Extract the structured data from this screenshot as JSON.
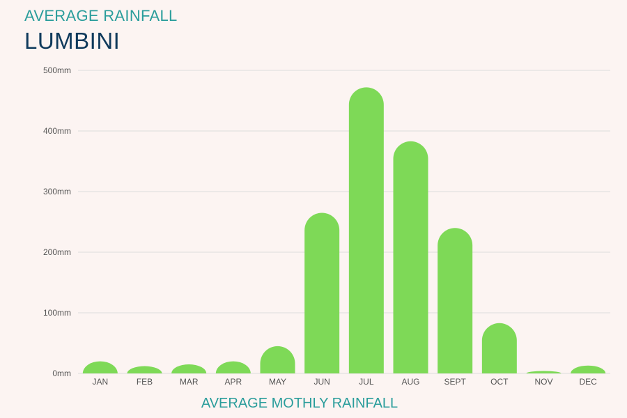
{
  "header": {
    "subtitle": "AVERAGE RAINFALL",
    "title": "LUMBINI"
  },
  "colors": {
    "bar": "#7ed957",
    "grid": "#dcdcdc",
    "background": "#fcf4f2"
  },
  "chart_data": {
    "type": "bar",
    "title": "LUMBINI",
    "subtitle": "AVERAGE RAINFALL",
    "xlabel": "AVERAGE MOTHLY RAINFALL",
    "ylabel": "",
    "categories": [
      "JAN",
      "FEB",
      "MAR",
      "APR",
      "MAY",
      "JUN",
      "JUL",
      "AUG",
      "SEPT",
      "OCT",
      "NOV",
      "DEC"
    ],
    "values": [
      20,
      12,
      15,
      20,
      45,
      265,
      472,
      383,
      240,
      83,
      4,
      13
    ],
    "ylim": [
      0,
      500
    ],
    "yticks": [
      0,
      100,
      200,
      300,
      400,
      500
    ],
    "ytick_labels": [
      "0mm",
      "100mm",
      "200mm",
      "300mm",
      "400mm",
      "500mm"
    ],
    "grid": true,
    "legend": "none"
  }
}
